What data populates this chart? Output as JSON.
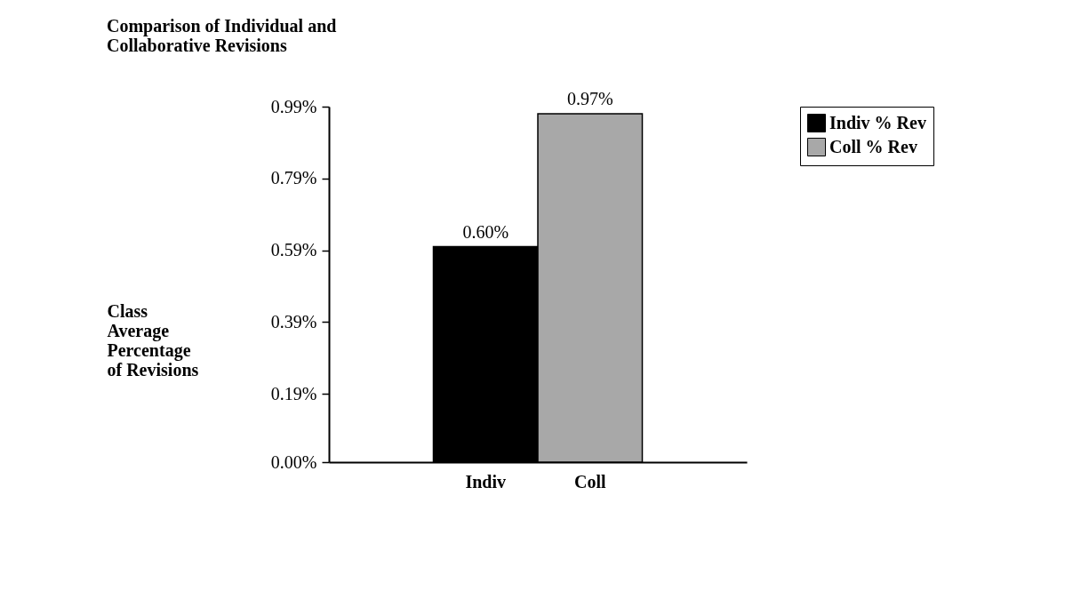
{
  "chart_data": {
    "type": "bar",
    "title": "Comparison of Individual and Collaborative Revisions",
    "ylabel": "Class Average Percentage of Revisions",
    "categories": [
      "Indiv",
      "Coll"
    ],
    "series": [
      {
        "name": "Indiv % Rev",
        "color": "#000000",
        "values": [
          0.6,
          null
        ],
        "value_labels": [
          "0.60%",
          null
        ]
      },
      {
        "name": "Coll % Rev",
        "color": "#a8a8a8",
        "values": [
          null,
          0.97
        ],
        "value_labels": [
          null,
          "0.97%"
        ]
      }
    ],
    "ylim": [
      0,
      0.99
    ],
    "yticks": [
      {
        "value": 0,
        "label": "0.00%"
      },
      {
        "value": 0.19,
        "label": "0.19%"
      },
      {
        "value": 0.39,
        "label": "0.39%"
      },
      {
        "value": 0.59,
        "label": "0.59%"
      },
      {
        "value": 0.79,
        "label": "0.79%"
      },
      {
        "value": 0.99,
        "label": "0.99%"
      }
    ],
    "grid": false,
    "legend": "right"
  }
}
